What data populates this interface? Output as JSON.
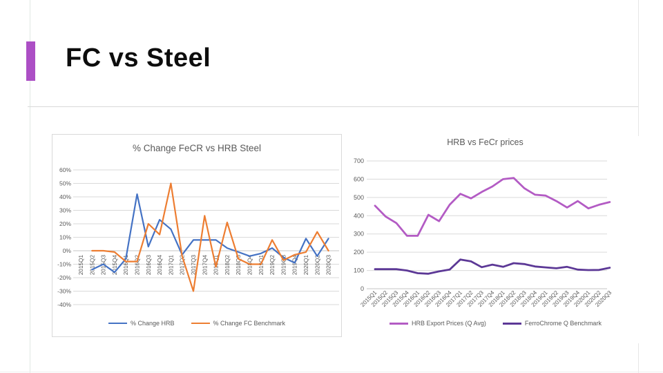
{
  "slide": {
    "title": "FC vs Steel",
    "accent_color": "#ac4fc5"
  },
  "chart_data": [
    {
      "type": "line",
      "title": "% Change FeCR vs HRB Steel",
      "categories": [
        "2015Q1",
        "2015Q2",
        "2015Q3",
        "2015Q4",
        "2016Q1",
        "2016Q2",
        "2016Q3",
        "2016Q4",
        "2017Q1",
        "2017Q2",
        "2017Q3",
        "2017Q4",
        "2018Q1",
        "2018Q2",
        "2018Q3",
        "2018Q4",
        "2019Q1",
        "2019Q2",
        "2019Q3",
        "2019Q4",
        "2020Q1",
        "2020Q2",
        "2020Q3"
      ],
      "series": [
        {
          "name": "% Change HRB",
          "color": "#4472C4",
          "values": [
            null,
            -14,
            -10,
            -16,
            -6,
            42,
            3,
            23,
            16,
            -3,
            8,
            8,
            8,
            2,
            -1,
            -4,
            -2,
            2,
            -5,
            -9,
            9,
            -4,
            9
          ]
        },
        {
          "name": "% Change FC Benchmark",
          "color": "#ED7D31",
          "values": [
            null,
            0,
            0,
            -1,
            -8,
            -8,
            20,
            12,
            50,
            -4,
            -30,
            26,
            -12,
            21,
            -6,
            -10,
            -10,
            8,
            -7,
            -3,
            -1,
            14,
            0
          ]
        }
      ],
      "ylim": [
        -40,
        60
      ],
      "yticks": [
        "60%",
        "50%",
        "40%",
        "30%",
        "20%",
        "10%",
        "0%",
        "-10%",
        "-20%",
        "-30%",
        "-40%"
      ],
      "grid": true,
      "legend_position": "bottom",
      "xlabel": "",
      "ylabel": ""
    },
    {
      "type": "line",
      "title": "HRB vs FeCr prices",
      "categories": [
        "2015Q1",
        "2015Q2",
        "2015Q3",
        "2015Q4",
        "2016Q1",
        "2016Q2",
        "2016Q3",
        "2016Q4",
        "2017Q1",
        "2017Q2",
        "2017Q3",
        "2017Q4",
        "2018Q1",
        "2018Q2",
        "2018Q3",
        "2018Q4",
        "2019Q1",
        "2019Q2",
        "2019Q3",
        "2019Q4",
        "2020Q1",
        "2020Q2",
        "2020Q3"
      ],
      "series": [
        {
          "name": "HRB Export Prices (Q Avg)",
          "color": "#B35BC4",
          "values": [
            455,
            395,
            360,
            290,
            290,
            405,
            370,
            460,
            520,
            495,
            530,
            560,
            600,
            607,
            550,
            515,
            510,
            480,
            445,
            480,
            440,
            460,
            475
          ]
        },
        {
          "name": "FerroChrome Q Benchmark",
          "color": "#5C3896",
          "values": [
            107,
            107,
            107,
            100,
            85,
            82,
            95,
            105,
            160,
            150,
            118,
            132,
            120,
            140,
            135,
            122,
            117,
            112,
            120,
            105,
            102,
            103,
            115
          ]
        }
      ],
      "ylim": [
        0,
        700
      ],
      "yticks": [
        "700",
        "600",
        "500",
        "400",
        "300",
        "200",
        "100",
        "0"
      ],
      "grid": true,
      "legend_position": "bottom",
      "xlabel": "",
      "ylabel": ""
    }
  ]
}
